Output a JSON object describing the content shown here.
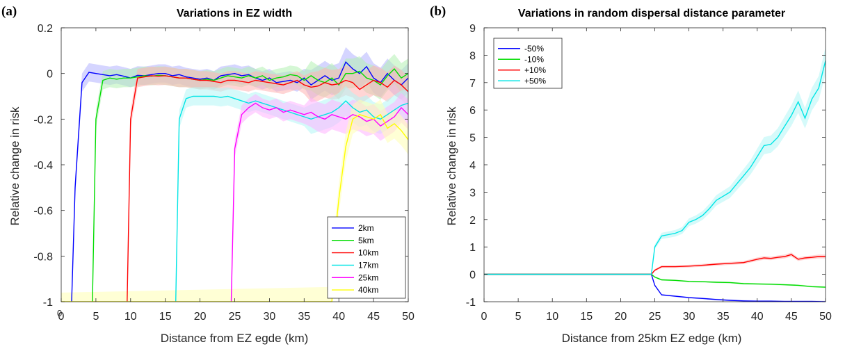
{
  "chart_data": [
    {
      "type": "line",
      "panel_label": "(a)",
      "title": "Variations in EZ width",
      "xlabel": "Distance from EZ egde (km)",
      "ylabel": "Relative change in risk",
      "xlim": [
        0,
        50
      ],
      "ylim": [
        -1,
        0.2
      ],
      "xticks": [
        "0",
        "5",
        "10",
        "15",
        "20",
        "25",
        "30",
        "35",
        "40",
        "45",
        "50"
      ],
      "yticks": [
        "-1",
        "-0.8",
        "-0.6",
        "-0.4",
        "-0.2",
        "0",
        "0.2"
      ],
      "extra_tick_label": "0",
      "grid": false,
      "legend_position": "bottom-right",
      "series": [
        {
          "name": "2km",
          "color": "#0000ff",
          "band_color": "#b3b3ff",
          "x": [
            1.5,
            2,
            3,
            4,
            5,
            6,
            7,
            8,
            9,
            10,
            11,
            12,
            13,
            14,
            15,
            16,
            17,
            18,
            19,
            20,
            21,
            22,
            23,
            24,
            25,
            26,
            27,
            28,
            29,
            30,
            31,
            32,
            33,
            34,
            35,
            36,
            37,
            38,
            39,
            40,
            41,
            42,
            43,
            44,
            45,
            46,
            47,
            48,
            49,
            50
          ],
          "y": [
            -1,
            -0.5,
            -0.04,
            0.005,
            0.0,
            -0.005,
            -0.01,
            -0.005,
            -0.012,
            -0.02,
            -0.008,
            -0.01,
            -0.005,
            0.0,
            0.0,
            -0.01,
            -0.005,
            -0.015,
            -0.02,
            -0.025,
            -0.02,
            -0.03,
            -0.01,
            -0.005,
            0.0,
            -0.01,
            -0.005,
            -0.02,
            -0.03,
            -0.02,
            -0.04,
            -0.035,
            -0.03,
            -0.04,
            -0.02,
            -0.05,
            -0.03,
            -0.01,
            -0.03,
            -0.02,
            0.05,
            0.02,
            0.0,
            0.03,
            -0.02,
            -0.04,
            0.0,
            -0.03,
            -0.05,
            -0.02
          ]
        },
        {
          "name": "5km",
          "color": "#00dd00",
          "band_color": "#b3f0b3",
          "x": [
            4.5,
            5,
            6,
            7,
            8,
            9,
            10,
            11,
            12,
            13,
            14,
            15,
            16,
            17,
            18,
            19,
            20,
            21,
            22,
            23,
            24,
            25,
            26,
            27,
            28,
            29,
            30,
            31,
            32,
            33,
            34,
            35,
            36,
            37,
            38,
            39,
            40,
            41,
            42,
            43,
            44,
            45,
            46,
            47,
            48,
            49,
            50
          ],
          "y": [
            -1,
            -0.2,
            -0.03,
            -0.02,
            -0.025,
            -0.02,
            -0.02,
            -0.015,
            -0.01,
            -0.012,
            -0.008,
            -0.01,
            -0.015,
            -0.02,
            -0.02,
            -0.025,
            -0.03,
            -0.025,
            -0.03,
            -0.02,
            -0.01,
            -0.015,
            -0.02,
            -0.01,
            -0.02,
            -0.01,
            -0.03,
            -0.02,
            -0.015,
            -0.005,
            -0.01,
            -0.03,
            -0.01,
            -0.03,
            -0.04,
            -0.02,
            -0.05,
            0.0,
            0.0,
            0.01,
            -0.02,
            -0.03,
            -0.05,
            -0.01,
            0.02,
            -0.02,
            0.0
          ]
        },
        {
          "name": "10km",
          "color": "#ff0000",
          "band_color": "#ffb3b3",
          "x": [
            9.5,
            10,
            11,
            12,
            13,
            14,
            15,
            16,
            17,
            18,
            19,
            20,
            21,
            22,
            23,
            24,
            25,
            26,
            27,
            28,
            29,
            30,
            31,
            32,
            33,
            34,
            35,
            36,
            37,
            38,
            39,
            40,
            41,
            42,
            43,
            44,
            45,
            46,
            47,
            48,
            49,
            50
          ],
          "y": [
            -1,
            -0.2,
            -0.02,
            -0.015,
            -0.01,
            -0.012,
            -0.01,
            -0.015,
            -0.02,
            -0.02,
            -0.025,
            -0.03,
            -0.03,
            -0.035,
            -0.04,
            -0.03,
            -0.03,
            -0.035,
            -0.04,
            -0.03,
            -0.035,
            -0.04,
            -0.045,
            -0.05,
            -0.04,
            -0.03,
            -0.05,
            -0.06,
            -0.055,
            -0.04,
            -0.05,
            -0.045,
            -0.03,
            -0.04,
            -0.07,
            -0.05,
            -0.03,
            -0.04,
            -0.06,
            -0.03,
            -0.05,
            -0.08
          ]
        },
        {
          "name": "17km",
          "color": "#00e5e5",
          "band_color": "#b3f5f5",
          "x": [
            16.5,
            17,
            18,
            19,
            20,
            21,
            22,
            23,
            24,
            25,
            26,
            27,
            28,
            29,
            30,
            31,
            32,
            33,
            34,
            35,
            36,
            37,
            38,
            39,
            40,
            41,
            42,
            43,
            44,
            45,
            46,
            47,
            48,
            49,
            50
          ],
          "y": [
            -1,
            -0.2,
            -0.11,
            -0.1,
            -0.1,
            -0.1,
            -0.1,
            -0.105,
            -0.1,
            -0.11,
            -0.12,
            -0.13,
            -0.12,
            -0.13,
            -0.14,
            -0.15,
            -0.16,
            -0.17,
            -0.18,
            -0.19,
            -0.2,
            -0.19,
            -0.18,
            -0.17,
            -0.15,
            -0.12,
            -0.15,
            -0.17,
            -0.16,
            -0.19,
            -0.2,
            -0.18,
            -0.16,
            -0.14,
            -0.13
          ]
        },
        {
          "name": "25km",
          "color": "#ff00ff",
          "band_color": "#ffb3ff",
          "x": [
            24.5,
            25,
            26,
            27,
            28,
            29,
            30,
            31,
            32,
            33,
            34,
            35,
            36,
            37,
            38,
            39,
            40,
            41,
            42,
            43,
            44,
            45,
            46,
            47,
            48,
            49,
            50
          ],
          "y": [
            -1,
            -0.33,
            -0.18,
            -0.15,
            -0.13,
            -0.15,
            -0.16,
            -0.15,
            -0.17,
            -0.16,
            -0.17,
            -0.18,
            -0.17,
            -0.19,
            -0.2,
            -0.18,
            -0.19,
            -0.2,
            -0.18,
            -0.19,
            -0.21,
            -0.2,
            -0.23,
            -0.21,
            -0.19,
            -0.15,
            -0.18
          ]
        },
        {
          "name": "40km",
          "color": "#ffff00",
          "band_color": "#ffffb3",
          "x": [
            0,
            39,
            39.5,
            40,
            41,
            42,
            43,
            44,
            45,
            46,
            47,
            48,
            49,
            50
          ],
          "y": [
            -1,
            -1,
            -0.7,
            -0.55,
            -0.32,
            -0.2,
            -0.18,
            -0.19,
            -0.2,
            -0.18,
            -0.24,
            -0.22,
            -0.25,
            -0.29
          ]
        }
      ]
    },
    {
      "type": "line",
      "panel_label": "(b)",
      "title": "Variations in random dispersal distance parameter",
      "xlabel": "Distance from 25km EZ edge (km)",
      "ylabel": "Relative change in risk",
      "xlim": [
        0,
        50
      ],
      "ylim": [
        -1,
        9
      ],
      "xticks": [
        "0",
        "5",
        "10",
        "15",
        "20",
        "25",
        "30",
        "35",
        "40",
        "45",
        "50"
      ],
      "yticks": [
        "-1",
        "0",
        "1",
        "2",
        "3",
        "4",
        "5",
        "6",
        "7",
        "8",
        "9"
      ],
      "grid": false,
      "legend_position": "top-left",
      "series": [
        {
          "name": "-50%",
          "color": "#0000ff",
          "band_color": "#b3b3ff",
          "x": [
            0,
            24.5,
            25,
            26,
            28,
            30,
            32,
            34,
            36,
            38,
            40,
            42,
            44,
            46,
            48,
            50
          ],
          "y": [
            0,
            0,
            -0.4,
            -0.75,
            -0.8,
            -0.85,
            -0.88,
            -0.92,
            -0.95,
            -0.97,
            -0.98,
            -0.98,
            -0.99,
            -0.99,
            -0.99,
            -1.0
          ]
        },
        {
          "name": "-10%",
          "color": "#00dd00",
          "band_color": "#b3f0b3",
          "x": [
            0,
            24.5,
            25,
            26,
            28,
            30,
            32,
            34,
            36,
            38,
            40,
            42,
            44,
            46,
            48,
            50
          ],
          "y": [
            0,
            0,
            -0.1,
            -0.2,
            -0.22,
            -0.26,
            -0.27,
            -0.29,
            -0.3,
            -0.34,
            -0.35,
            -0.36,
            -0.38,
            -0.4,
            -0.45,
            -0.47
          ]
        },
        {
          "name": "+10%",
          "color": "#ff0000",
          "band_color": "#ffb3b3",
          "x": [
            0,
            24.5,
            25,
            26,
            28,
            30,
            32,
            34,
            36,
            38,
            40,
            41,
            42,
            43,
            44,
            45,
            46,
            47,
            48,
            49,
            50
          ],
          "y": [
            0,
            0,
            0.15,
            0.28,
            0.28,
            0.3,
            0.33,
            0.37,
            0.4,
            0.43,
            0.55,
            0.6,
            0.58,
            0.62,
            0.65,
            0.72,
            0.55,
            0.6,
            0.62,
            0.65,
            0.65
          ]
        },
        {
          "name": "+50%",
          "color": "#00e5e5",
          "band_color": "#b3f5f5",
          "x": [
            0,
            24.5,
            25,
            26,
            27,
            28,
            29,
            30,
            31,
            32,
            33,
            34,
            35,
            36,
            37,
            38,
            39,
            40,
            41,
            42,
            43,
            44,
            45,
            46,
            47,
            48,
            49,
            50
          ],
          "y": [
            0,
            0,
            1.0,
            1.4,
            1.45,
            1.5,
            1.6,
            1.9,
            2.0,
            2.15,
            2.4,
            2.7,
            2.85,
            3.0,
            3.3,
            3.6,
            3.9,
            4.3,
            4.7,
            4.75,
            5.0,
            5.4,
            5.8,
            6.3,
            5.7,
            6.4,
            6.8,
            7.8
          ]
        }
      ]
    }
  ]
}
